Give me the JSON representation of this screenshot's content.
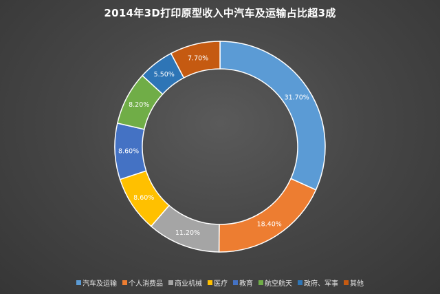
{
  "chart_data": {
    "type": "pie",
    "title": "2014年3D打印原型收入中汽车及运输占比超3成",
    "categories": [
      "汽车及运输",
      "个人消费品",
      "商业机械",
      "医疗",
      "教育",
      "航空航天",
      "政府、军事",
      "其他"
    ],
    "values": [
      31.7,
      18.4,
      11.2,
      8.6,
      8.6,
      8.2,
      5.5,
      7.7
    ],
    "data_labels": [
      "31.70%",
      "18.40%",
      "11.20%",
      "8.60%",
      "8.60%",
      "8.20%",
      "5.50%",
      "7.70%"
    ],
    "colors": [
      "#5b9bd5",
      "#ed7d31",
      "#a5a5a5",
      "#ffc000",
      "#4472c4",
      "#70ad47",
      "#2e75b6",
      "#c55a11"
    ],
    "style": "doughnut",
    "legend_position": "bottom"
  }
}
